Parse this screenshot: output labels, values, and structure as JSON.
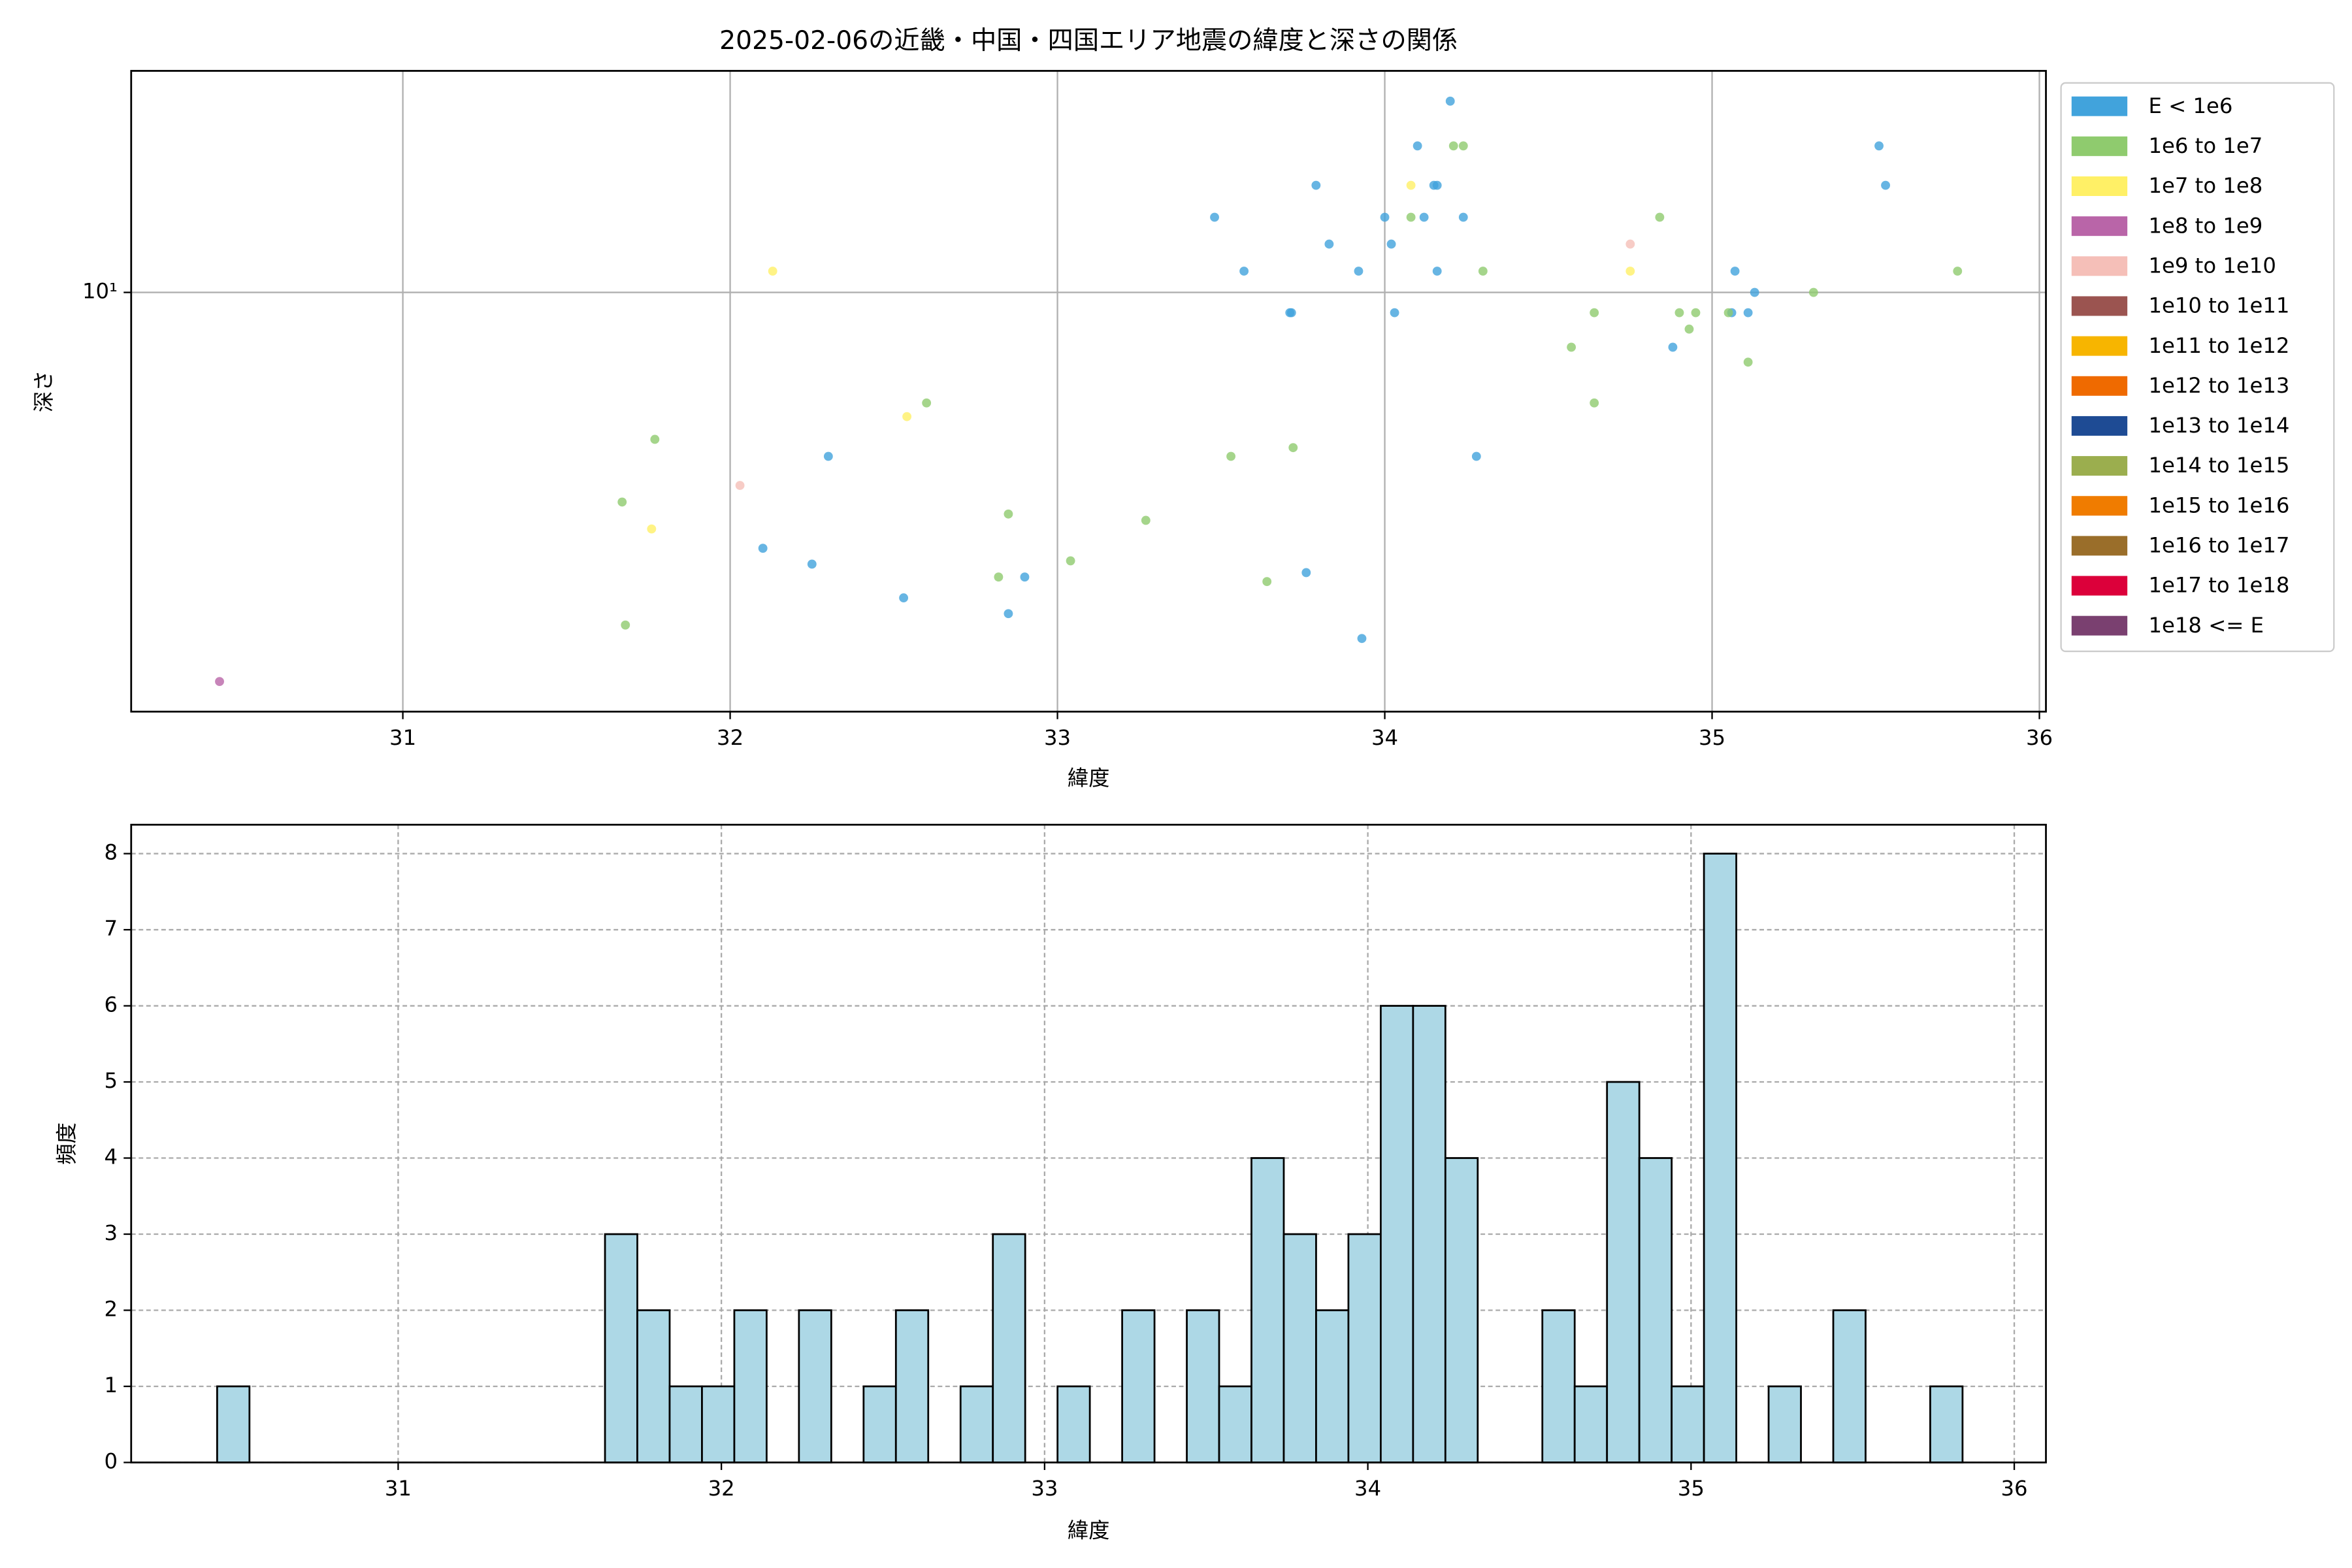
{
  "chart_data": [
    {
      "type": "scatter",
      "title": "2025-02-06の近畿・中国・四国エリア地震の緯度と深さの関係",
      "x_label": "緯度",
      "y_label": "深さ",
      "xlim": [
        30.17,
        36.02
      ],
      "xticks": [
        31,
        32,
        33,
        34,
        35,
        36
      ],
      "ylim": [
        0.9,
        35.7
      ],
      "yticks": [
        {
          "value": 10,
          "label": "10¹"
        }
      ],
      "log_y": true,
      "grid": true,
      "legend": "outside right",
      "series": [
        {
          "name": "E < 1e6",
          "color": "#41a3dc",
          "x": [
            32.3,
            32.1,
            32.25,
            32.53,
            32.85,
            32.9,
            33.48,
            33.57,
            33.71,
            33.715,
            33.79,
            33.83,
            33.92,
            34.0,
            34.02,
            34.03,
            34.1,
            34.12,
            34.15,
            34.16,
            34.2,
            34.16,
            34.24,
            34.28,
            33.76,
            33.93,
            34.88,
            35.07,
            35.06,
            35.11,
            35.13,
            35.51,
            35.53
          ],
          "values": [
            3.9,
            2.3,
            2.1,
            1.73,
            1.58,
            1.95,
            15.4,
            11.3,
            8.9,
            8.9,
            18.5,
            13.2,
            11.3,
            15.4,
            13.2,
            8.9,
            23.2,
            15.4,
            18.5,
            18.5,
            30,
            11.3,
            15.4,
            3.9,
            2.0,
            1.37,
            7.3,
            11.3,
            8.9,
            8.9,
            10,
            23.2,
            18.5
          ]
        },
        {
          "name": "1e6 to 1e7",
          "color": "#8fcb6e",
          "x": [
            31.77,
            31.67,
            31.68,
            32.6,
            32.85,
            32.82,
            33.04,
            33.27,
            33.53,
            33.72,
            33.64,
            34.08,
            34.21,
            34.24,
            34.3,
            34.57,
            34.64,
            34.64,
            34.84,
            34.9,
            34.95,
            34.93,
            35.05,
            35.11,
            35.31,
            35.75
          ],
          "values": [
            4.3,
            3.0,
            1.48,
            5.3,
            2.8,
            1.95,
            2.14,
            2.7,
            3.9,
            4.1,
            1.9,
            15.4,
            23.2,
            23.2,
            11.3,
            7.3,
            8.9,
            5.3,
            15.4,
            8.9,
            8.9,
            8.1,
            8.9,
            6.7,
            10,
            11.3
          ]
        },
        {
          "name": "1e7 to 1e8",
          "color": "#fff066",
          "x": [
            32.13,
            32.54,
            31.76,
            34.08,
            34.75
          ],
          "values": [
            11.3,
            4.9,
            2.57,
            18.5,
            11.3
          ]
        },
        {
          "name": "1e8 to 1e9",
          "color": "#b965a8",
          "x": [
            30.44
          ],
          "values": [
            1.07
          ]
        },
        {
          "name": "1e9 to 1e10",
          "color": "#f5bfb8",
          "x": [
            32.03,
            34.75
          ],
          "values": [
            3.3,
            13.2
          ]
        },
        {
          "name": "1e10 to 1e11",
          "color": "#9b5450",
          "x": [],
          "values": []
        },
        {
          "name": "1e11 to 1e12",
          "color": "#f7b500",
          "x": [],
          "values": []
        },
        {
          "name": "1e12 to 1e13",
          "color": "#ef6a00",
          "x": [],
          "values": []
        },
        {
          "name": "1e13 to 1e14",
          "color": "#1e4b94",
          "x": [],
          "values": []
        },
        {
          "name": "1e14 to 1e15",
          "color": "#9bae4e",
          "x": [],
          "values": []
        },
        {
          "name": "1e15 to 1e16",
          "color": "#f07c00",
          "x": [],
          "values": []
        },
        {
          "name": "1e16 to 1e17",
          "color": "#9a6e2a",
          "x": [],
          "values": []
        },
        {
          "name": "1e17 to 1e18",
          "color": "#dc003a",
          "x": [],
          "values": []
        },
        {
          "name": "1e18 <= E",
          "color": "#7a4070",
          "x": [],
          "values": []
        }
      ]
    },
    {
      "type": "histogram",
      "x_label": "緯度",
      "y_label": "頻度",
      "color": "#add8e6",
      "bins": [
        30.44,
        30.54,
        30.64,
        30.74,
        30.84,
        30.94,
        31.04,
        31.14,
        31.24,
        31.34,
        31.44,
        31.54,
        31.64,
        31.74,
        31.84,
        31.94,
        32.04,
        32.14,
        32.24,
        32.34,
        32.44,
        32.54,
        32.64,
        32.74,
        32.84,
        32.94,
        33.04,
        33.14,
        33.24,
        33.34,
        33.44,
        33.54,
        33.64,
        33.74,
        33.84,
        33.94,
        34.04,
        34.14,
        34.24,
        34.34,
        34.44,
        34.54,
        34.64,
        34.74,
        34.84,
        34.94,
        35.04,
        35.14,
        35.24,
        35.34,
        35.44,
        35.54,
        35.64,
        35.74,
        35.84
      ],
      "counts": [
        1,
        0,
        0,
        0,
        0,
        0,
        0,
        0,
        0,
        0,
        0,
        0,
        3,
        2,
        1,
        1,
        2,
        0,
        2,
        0,
        1,
        2,
        0,
        1,
        3,
        0,
        1,
        0,
        2,
        0,
        2,
        1,
        4,
        3,
        2,
        3,
        6,
        6,
        4,
        0,
        0,
        2,
        1,
        5,
        4,
        1,
        8,
        0,
        1,
        0,
        2,
        0,
        0,
        1
      ],
      "xlim": [
        30.174,
        36.098
      ],
      "xticks": [
        31,
        32,
        33,
        34,
        35,
        36
      ],
      "ylim": [
        0,
        8.38
      ],
      "yticks": [
        0,
        1,
        2,
        3,
        4,
        5,
        6,
        7,
        8
      ],
      "grid": true
    }
  ]
}
